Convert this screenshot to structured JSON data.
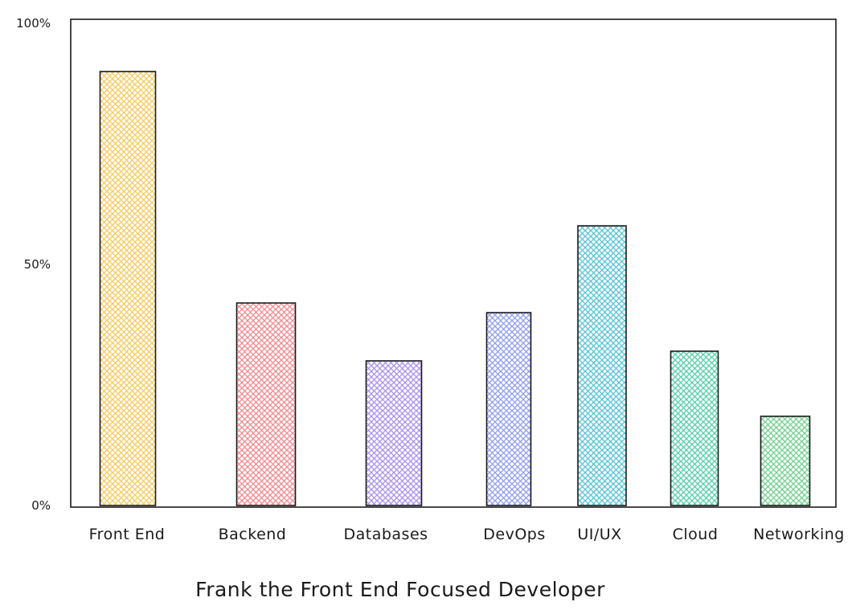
{
  "chart_data": {
    "type": "bar",
    "title": "Frank the Front End Focused Developer",
    "xlabel": "",
    "ylabel": "",
    "ylim": [
      0,
      100
    ],
    "yticks": [
      {
        "value": 0,
        "label": "0%"
      },
      {
        "value": 50,
        "label": "50%"
      },
      {
        "value": 100,
        "label": "100%"
      }
    ],
    "grid": false,
    "legend": "none",
    "categories": [
      "Front End",
      "Backend",
      "Databases",
      "DevOps",
      "UI/UX",
      "Cloud",
      "Networking"
    ],
    "values": [
      90,
      42,
      30,
      40,
      58,
      32,
      18.5
    ],
    "colors": [
      "#f7c95c",
      "#f4878e",
      "#a98ef0",
      "#8d9cf2",
      "#52c3d6",
      "#53cfa4",
      "#6fd08b"
    ]
  }
}
